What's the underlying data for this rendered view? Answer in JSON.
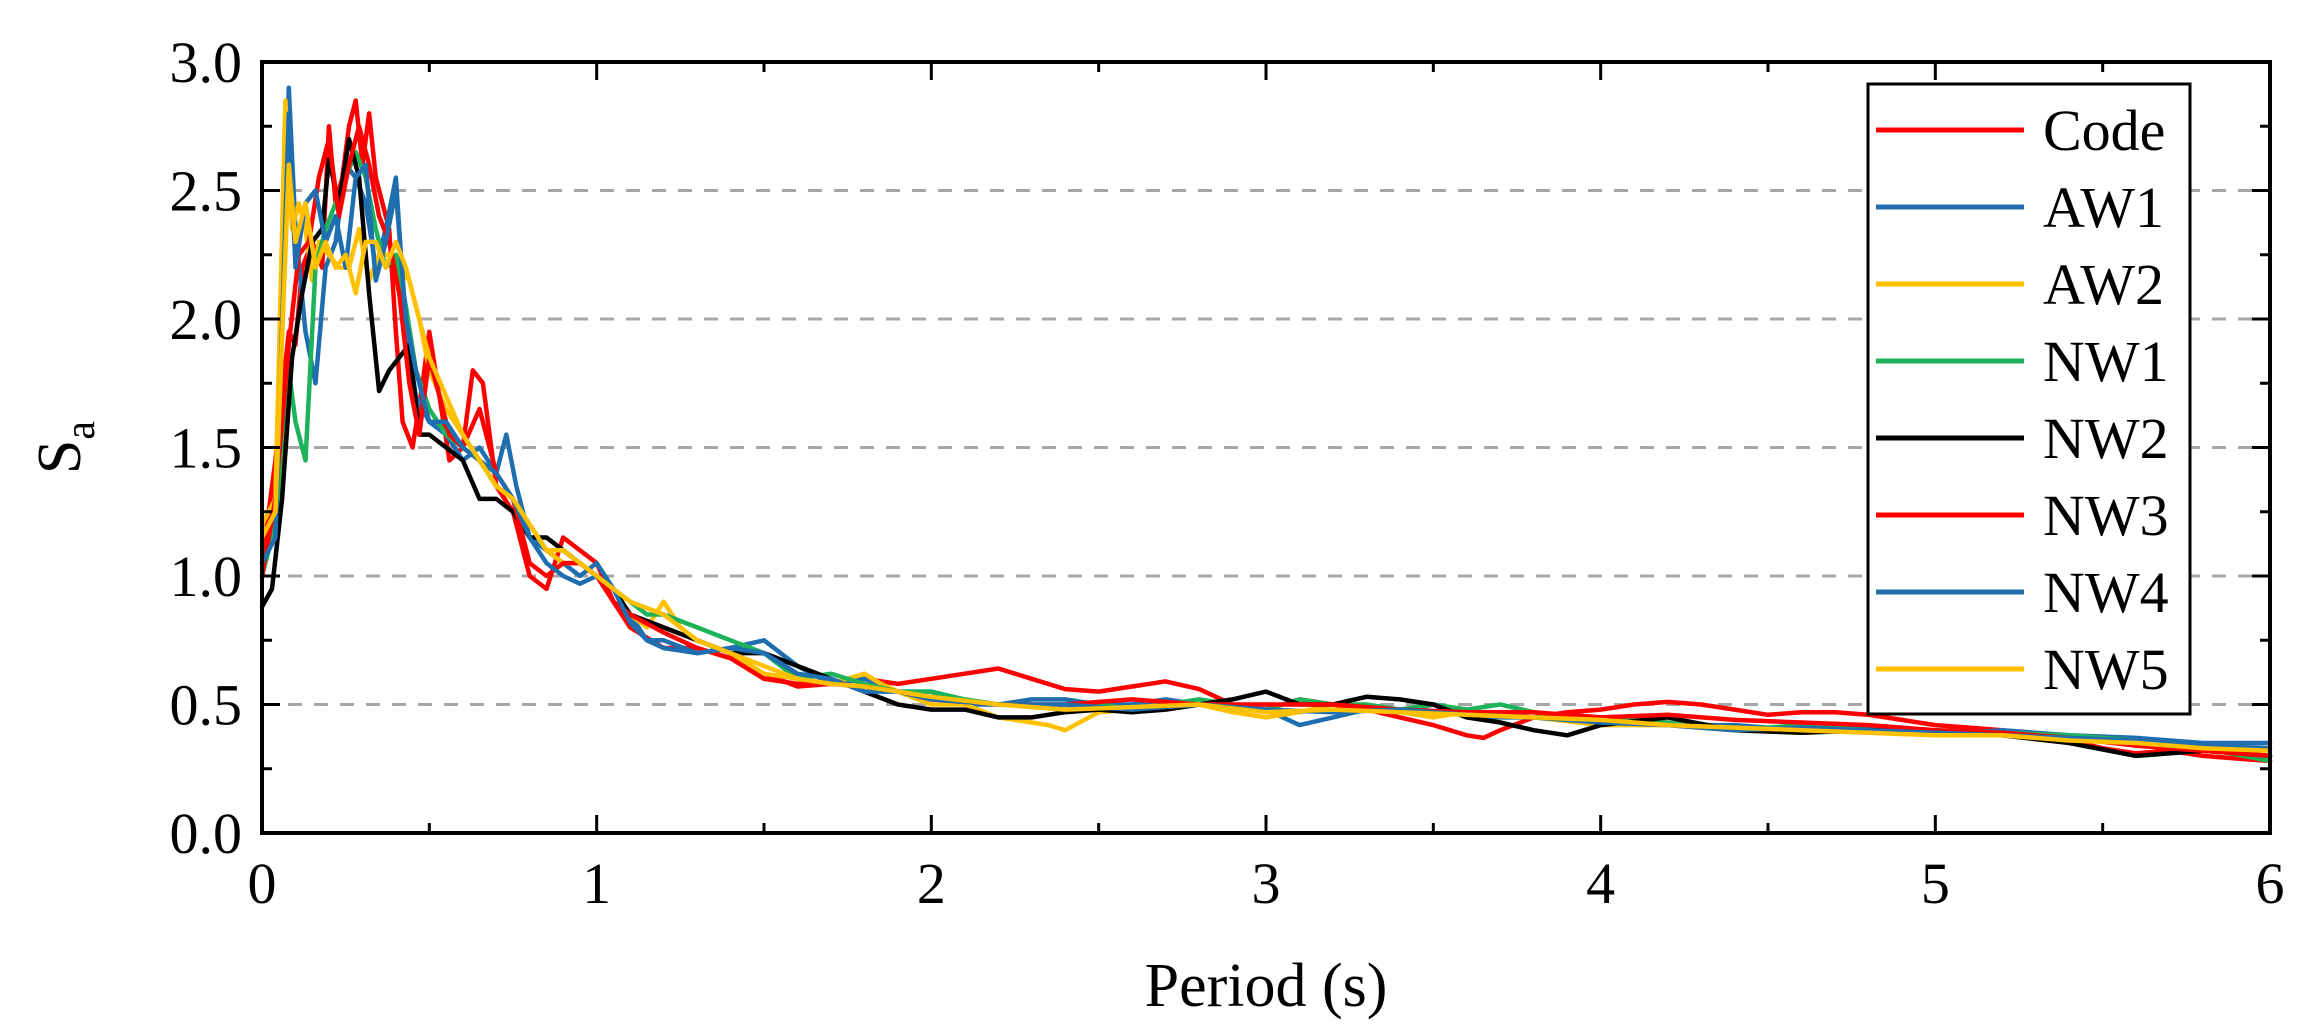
{
  "chart_data": {
    "type": "line",
    "xlabel": "Period (s)",
    "ylabel_main": "S",
    "ylabel_sub": "a",
    "xlim": [
      0,
      6
    ],
    "ylim": [
      0,
      3
    ],
    "x_ticks": [
      0,
      1,
      2,
      3,
      4,
      5,
      6
    ],
    "x_tick_labels": [
      "0",
      "1",
      "2",
      "3",
      "4",
      "5",
      "6"
    ],
    "y_ticks": [
      0,
      0.5,
      1,
      1.5,
      2,
      2.5,
      3
    ],
    "y_tick_labels": [
      "0.0",
      "0.5",
      "1.0",
      "1.5",
      "2.0",
      "2.5",
      "3.0"
    ],
    "grid": "horizontal dashed",
    "legend_position": "top-right",
    "series": [
      {
        "name": "Code",
        "color": "#ff0000",
        "x": [
          0.0,
          0.04,
          0.08,
          0.1,
          0.12,
          0.15,
          0.18,
          0.2,
          0.22,
          0.24,
          0.26,
          0.28,
          0.3,
          0.32,
          0.34,
          0.36,
          0.38,
          0.4,
          0.42,
          0.45,
          0.48,
          0.5,
          0.53,
          0.56,
          0.6,
          0.63,
          0.66,
          0.7,
          0.75,
          0.8,
          0.85,
          0.9,
          0.95,
          1.0,
          1.05,
          1.1,
          1.2,
          1.3,
          1.4,
          1.5,
          1.6,
          1.7,
          1.8,
          1.9,
          2.0,
          2.1,
          2.2,
          2.3,
          2.4,
          2.5,
          2.6,
          2.7,
          2.8,
          2.9,
          3.0,
          3.1,
          3.2,
          3.3,
          3.4,
          3.5,
          3.6,
          3.65,
          3.7,
          3.8,
          3.9,
          4.0,
          4.1,
          4.2,
          4.3,
          4.4,
          4.5,
          4.6,
          4.7,
          4.8,
          4.9,
          5.0,
          5.1,
          5.2,
          5.3,
          5.4,
          5.5,
          5.6,
          5.7,
          5.8,
          5.9,
          6.0
        ],
        "y": [
          1.05,
          1.45,
          1.95,
          1.9,
          2.2,
          2.3,
          2.2,
          2.75,
          2.45,
          2.55,
          2.75,
          2.85,
          2.6,
          2.8,
          2.55,
          2.45,
          2.35,
          1.95,
          1.6,
          1.5,
          1.75,
          1.95,
          1.7,
          1.45,
          1.5,
          1.8,
          1.75,
          1.35,
          1.25,
          1.0,
          0.95,
          1.15,
          1.1,
          1.05,
          0.9,
          0.8,
          0.72,
          0.72,
          0.68,
          0.62,
          0.57,
          0.58,
          0.6,
          0.58,
          0.6,
          0.62,
          0.64,
          0.6,
          0.56,
          0.55,
          0.57,
          0.59,
          0.56,
          0.5,
          0.48,
          0.52,
          0.5,
          0.48,
          0.45,
          0.42,
          0.38,
          0.37,
          0.4,
          0.45,
          0.47,
          0.48,
          0.5,
          0.51,
          0.5,
          0.48,
          0.46,
          0.47,
          0.47,
          0.46,
          0.44,
          0.42,
          0.41,
          0.4,
          0.38,
          0.36,
          0.33,
          0.31,
          0.32,
          0.3,
          0.29,
          0.28
        ]
      },
      {
        "name": "AW1",
        "color": "#1f6fb0",
        "x": [
          0.0,
          0.04,
          0.08,
          0.1,
          0.13,
          0.16,
          0.19,
          0.22,
          0.25,
          0.28,
          0.31,
          0.34,
          0.37,
          0.4,
          0.43,
          0.46,
          0.5,
          0.55,
          0.6,
          0.65,
          0.7,
          0.73,
          0.76,
          0.8,
          0.85,
          0.9,
          0.95,
          1.0,
          1.05,
          1.1,
          1.15,
          1.2,
          1.3,
          1.4,
          1.5,
          1.6,
          1.7,
          1.8,
          1.9,
          2.0,
          2.1,
          2.2,
          2.3,
          2.4,
          2.5,
          2.6,
          2.7,
          2.8,
          2.9,
          3.0,
          3.1,
          3.2,
          3.3,
          3.4,
          3.5,
          3.6,
          3.7,
          3.8,
          3.9,
          4.0,
          4.2,
          4.4,
          4.6,
          4.8,
          5.0,
          5.2,
          5.4,
          5.6,
          5.8,
          6.0
        ],
        "y": [
          1.0,
          1.3,
          2.9,
          2.35,
          1.95,
          1.75,
          2.2,
          2.3,
          2.6,
          2.55,
          2.45,
          2.2,
          2.35,
          2.55,
          1.95,
          1.7,
          1.6,
          1.55,
          1.45,
          1.5,
          1.4,
          1.55,
          1.35,
          1.15,
          1.1,
          1.05,
          1.0,
          1.05,
          0.95,
          0.85,
          0.75,
          0.75,
          0.7,
          0.72,
          0.75,
          0.65,
          0.58,
          0.6,
          0.55,
          0.55,
          0.5,
          0.5,
          0.52,
          0.52,
          0.5,
          0.5,
          0.52,
          0.5,
          0.48,
          0.48,
          0.42,
          0.45,
          0.48,
          0.47,
          0.5,
          0.45,
          0.45,
          0.45,
          0.45,
          0.45,
          0.42,
          0.42,
          0.4,
          0.41,
          0.38,
          0.4,
          0.38,
          0.37,
          0.35,
          0.35
        ]
      },
      {
        "name": "AW2",
        "color": "#ffc000",
        "x": [
          0.0,
          0.04,
          0.07,
          0.09,
          0.11,
          0.13,
          0.15,
          0.17,
          0.2,
          0.23,
          0.26,
          0.29,
          0.32,
          0.35,
          0.38,
          0.41,
          0.44,
          0.47,
          0.5,
          0.55,
          0.6,
          0.65,
          0.7,
          0.75,
          0.8,
          0.85,
          0.9,
          0.95,
          1.0,
          1.05,
          1.1,
          1.15,
          1.2,
          1.25,
          1.3,
          1.4,
          1.5,
          1.6,
          1.7,
          1.8,
          1.85,
          1.9,
          2.0,
          2.1,
          2.2,
          2.3,
          2.35,
          2.4,
          2.5,
          2.6,
          2.7,
          2.8,
          2.9,
          3.0,
          3.1,
          3.2,
          3.3,
          3.4,
          3.5,
          3.6,
          3.8,
          4.0,
          4.2,
          4.4,
          4.6,
          4.8,
          5.0,
          5.2,
          5.4,
          5.6,
          5.8,
          6.0
        ],
        "y": [
          1.2,
          1.3,
          2.85,
          2.35,
          2.45,
          2.35,
          2.15,
          2.3,
          2.25,
          2.2,
          2.2,
          2.35,
          2.15,
          2.25,
          2.25,
          2.2,
          2.15,
          2.0,
          1.8,
          1.65,
          1.55,
          1.45,
          1.35,
          1.3,
          1.2,
          1.1,
          1.05,
          1.05,
          1.0,
          0.95,
          0.85,
          0.8,
          0.9,
          0.8,
          0.75,
          0.7,
          0.62,
          0.6,
          0.58,
          0.62,
          0.58,
          0.55,
          0.5,
          0.5,
          0.45,
          0.43,
          0.42,
          0.4,
          0.47,
          0.48,
          0.5,
          0.5,
          0.47,
          0.45,
          0.47,
          0.5,
          0.5,
          0.47,
          0.45,
          0.47,
          0.45,
          0.42,
          0.42,
          0.4,
          0.39,
          0.4,
          0.38,
          0.38,
          0.37,
          0.35,
          0.33,
          0.3
        ]
      },
      {
        "name": "NW1",
        "color": "#1db35a",
        "x": [
          0.0,
          0.04,
          0.08,
          0.1,
          0.13,
          0.16,
          0.19,
          0.22,
          0.25,
          0.28,
          0.31,
          0.34,
          0.37,
          0.4,
          0.43,
          0.46,
          0.5,
          0.55,
          0.6,
          0.65,
          0.7,
          0.75,
          0.8,
          0.85,
          0.9,
          0.95,
          1.0,
          1.05,
          1.1,
          1.15,
          1.2,
          1.3,
          1.4,
          1.5,
          1.6,
          1.7,
          1.8,
          1.9,
          2.0,
          2.1,
          2.2,
          2.3,
          2.4,
          2.5,
          2.6,
          2.7,
          2.8,
          2.9,
          3.0,
          3.1,
          3.2,
          3.3,
          3.4,
          3.5,
          3.6,
          3.7,
          3.8,
          3.9,
          4.0,
          4.2,
          4.4,
          4.6,
          4.8,
          5.0,
          5.2,
          5.4,
          5.6,
          5.8,
          6.0
        ],
        "y": [
          1.0,
          1.2,
          1.8,
          1.6,
          1.45,
          2.2,
          2.35,
          2.45,
          2.55,
          2.65,
          2.55,
          2.35,
          2.2,
          2.25,
          2.05,
          1.8,
          1.65,
          1.55,
          1.5,
          1.45,
          1.35,
          1.3,
          1.2,
          1.1,
          1.1,
          1.05,
          1.0,
          0.95,
          0.9,
          0.85,
          0.85,
          0.8,
          0.75,
          0.7,
          0.6,
          0.62,
          0.58,
          0.55,
          0.55,
          0.52,
          0.5,
          0.5,
          0.48,
          0.5,
          0.48,
          0.5,
          0.52,
          0.5,
          0.48,
          0.52,
          0.5,
          0.5,
          0.48,
          0.5,
          0.48,
          0.5,
          0.47,
          0.45,
          0.45,
          0.43,
          0.4,
          0.42,
          0.4,
          0.4,
          0.39,
          0.38,
          0.36,
          0.33,
          0.28
        ]
      },
      {
        "name": "NW2",
        "color": "#000000",
        "x": [
          0.0,
          0.03,
          0.06,
          0.09,
          0.12,
          0.15,
          0.18,
          0.2,
          0.23,
          0.26,
          0.29,
          0.32,
          0.35,
          0.38,
          0.41,
          0.44,
          0.47,
          0.5,
          0.55,
          0.6,
          0.65,
          0.7,
          0.75,
          0.8,
          0.85,
          0.9,
          0.95,
          1.0,
          1.05,
          1.1,
          1.2,
          1.3,
          1.4,
          1.5,
          1.6,
          1.7,
          1.8,
          1.9,
          2.0,
          2.1,
          2.2,
          2.3,
          2.4,
          2.5,
          2.6,
          2.7,
          2.8,
          2.9,
          3.0,
          3.1,
          3.2,
          3.3,
          3.4,
          3.5,
          3.6,
          3.7,
          3.8,
          3.9,
          4.0,
          4.2,
          4.4,
          4.6,
          4.8,
          5.0,
          5.2,
          5.4,
          5.6,
          5.8,
          6.0
        ],
        "y": [
          0.88,
          0.95,
          1.3,
          1.85,
          2.1,
          2.3,
          2.35,
          2.62,
          2.45,
          2.7,
          2.55,
          2.1,
          1.72,
          1.8,
          1.85,
          1.9,
          1.55,
          1.55,
          1.5,
          1.45,
          1.3,
          1.3,
          1.25,
          1.15,
          1.15,
          1.1,
          1.05,
          1.0,
          0.95,
          0.85,
          0.8,
          0.75,
          0.7,
          0.7,
          0.65,
          0.6,
          0.55,
          0.5,
          0.48,
          0.48,
          0.45,
          0.45,
          0.47,
          0.48,
          0.47,
          0.48,
          0.5,
          0.52,
          0.55,
          0.5,
          0.5,
          0.53,
          0.52,
          0.5,
          0.45,
          0.43,
          0.4,
          0.38,
          0.42,
          0.45,
          0.4,
          0.39,
          0.4,
          0.4,
          0.38,
          0.35,
          0.3,
          0.32,
          0.3
        ]
      },
      {
        "name": "NW3",
        "color": "#ff0000",
        "x": [
          0.0,
          0.04,
          0.08,
          0.11,
          0.14,
          0.17,
          0.2,
          0.23,
          0.26,
          0.29,
          0.32,
          0.35,
          0.38,
          0.41,
          0.44,
          0.47,
          0.5,
          0.53,
          0.56,
          0.6,
          0.65,
          0.7,
          0.75,
          0.8,
          0.85,
          0.9,
          0.95,
          1.0,
          1.05,
          1.1,
          1.2,
          1.3,
          1.4,
          1.5,
          1.6,
          1.7,
          1.8,
          1.9,
          2.0,
          2.2,
          2.4,
          2.6,
          2.8,
          3.0,
          3.2,
          3.4,
          3.6,
          3.8,
          4.0,
          4.2,
          4.4,
          4.6,
          4.8,
          5.0,
          5.2,
          5.4,
          5.6,
          5.8,
          6.0
        ],
        "y": [
          1.0,
          1.3,
          1.9,
          2.25,
          2.3,
          2.55,
          2.7,
          2.4,
          2.6,
          2.75,
          2.6,
          2.4,
          2.3,
          2.1,
          1.75,
          1.55,
          1.85,
          1.7,
          1.55,
          1.5,
          1.65,
          1.4,
          1.3,
          1.05,
          1.0,
          1.05,
          1.05,
          1.0,
          0.9,
          0.85,
          0.78,
          0.72,
          0.68,
          0.6,
          0.58,
          0.58,
          0.57,
          0.55,
          0.52,
          0.5,
          0.5,
          0.52,
          0.5,
          0.5,
          0.5,
          0.48,
          0.47,
          0.47,
          0.45,
          0.46,
          0.44,
          0.43,
          0.42,
          0.4,
          0.39,
          0.37,
          0.34,
          0.32,
          0.3
        ]
      },
      {
        "name": "NW4",
        "color": "#1f6fb0",
        "x": [
          0.0,
          0.04,
          0.08,
          0.1,
          0.13,
          0.16,
          0.19,
          0.22,
          0.25,
          0.28,
          0.31,
          0.34,
          0.37,
          0.4,
          0.43,
          0.46,
          0.5,
          0.55,
          0.6,
          0.65,
          0.7,
          0.75,
          0.8,
          0.85,
          0.9,
          0.95,
          1.0,
          1.05,
          1.1,
          1.15,
          1.2,
          1.3,
          1.4,
          1.5,
          1.6,
          1.7,
          1.8,
          1.9,
          2.0,
          2.2,
          2.4,
          2.6,
          2.8,
          3.0,
          3.2,
          3.4,
          3.6,
          3.8,
          4.0,
          4.2,
          4.4,
          4.6,
          4.8,
          5.0,
          5.2,
          5.4,
          5.6,
          5.8,
          6.0
        ],
        "y": [
          1.05,
          1.15,
          2.8,
          2.2,
          2.45,
          2.5,
          2.3,
          2.4,
          2.2,
          2.55,
          2.6,
          2.15,
          2.3,
          2.5,
          2.0,
          1.8,
          1.6,
          1.6,
          1.5,
          1.45,
          1.4,
          1.3,
          1.15,
          1.05,
          1.0,
          0.97,
          1.0,
          0.95,
          0.82,
          0.75,
          0.72,
          0.7,
          0.72,
          0.7,
          0.62,
          0.6,
          0.55,
          0.55,
          0.52,
          0.5,
          0.5,
          0.48,
          0.5,
          0.48,
          0.47,
          0.48,
          0.46,
          0.45,
          0.43,
          0.42,
          0.4,
          0.41,
          0.4,
          0.39,
          0.38,
          0.37,
          0.36,
          0.34,
          0.33
        ]
      },
      {
        "name": "NW5",
        "color": "#ffc000",
        "x": [
          0.0,
          0.04,
          0.08,
          0.1,
          0.13,
          0.16,
          0.19,
          0.22,
          0.25,
          0.28,
          0.31,
          0.34,
          0.37,
          0.4,
          0.43,
          0.46,
          0.5,
          0.55,
          0.6,
          0.65,
          0.7,
          0.75,
          0.8,
          0.85,
          0.9,
          0.95,
          1.0,
          1.05,
          1.1,
          1.2,
          1.3,
          1.4,
          1.5,
          1.6,
          1.7,
          1.8,
          1.9,
          2.0,
          2.2,
          2.4,
          2.6,
          2.8,
          3.0,
          3.2,
          3.4,
          3.6,
          3.8,
          4.0,
          4.2,
          4.4,
          4.6,
          4.8,
          5.0,
          5.2,
          5.4,
          5.6,
          5.8,
          6.0
        ],
        "y": [
          1.15,
          1.25,
          2.6,
          2.3,
          2.45,
          2.2,
          2.3,
          2.2,
          2.25,
          2.1,
          2.3,
          2.3,
          2.2,
          2.3,
          2.2,
          2.05,
          1.85,
          1.7,
          1.55,
          1.45,
          1.35,
          1.3,
          1.2,
          1.1,
          1.1,
          1.05,
          1.0,
          0.95,
          0.9,
          0.85,
          0.75,
          0.7,
          0.65,
          0.6,
          0.58,
          0.57,
          0.55,
          0.53,
          0.5,
          0.48,
          0.49,
          0.5,
          0.47,
          0.48,
          0.47,
          0.46,
          0.45,
          0.44,
          0.42,
          0.41,
          0.4,
          0.39,
          0.38,
          0.38,
          0.36,
          0.35,
          0.33,
          0.32
        ]
      }
    ]
  }
}
